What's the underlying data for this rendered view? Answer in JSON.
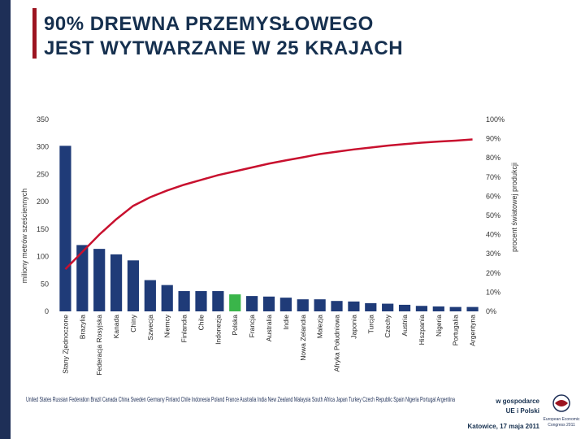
{
  "slide": {
    "title_line1": "90% DREWNA PRZEMYSŁOWEGO",
    "title_line2": "JEST WYTWARZANE W 25 KRAJACH",
    "footer_line1": "w gospodarce",
    "footer_line2": "UE i Polski",
    "footer_date": "Katowice, 17 maja 2011",
    "logo_text": "European Economic Congress 2011",
    "colors": {
      "sidebar": "#1e2f57",
      "accent": "#9c1420",
      "bar": "#1f3b78",
      "highlight": "#3ab54a",
      "line": "#c8102e"
    }
  },
  "chart_data": {
    "type": "bar",
    "categories": [
      "Stany Zjednoczone",
      "Brazylia",
      "Federacja Rosyjska",
      "Kanada",
      "Chiny",
      "Szwecja",
      "Niemcy",
      "Finlandia",
      "Chile",
      "Indonezja",
      "Polska",
      "Francja",
      "Australia",
      "Indie",
      "Nowa Zelandia",
      "Malezja",
      "Afryka Południowa",
      "Japonia",
      "Turcja",
      "Czechy",
      "Austria",
      "Hiszpania",
      "Nigeria",
      "Portugalia",
      "Argentyna"
    ],
    "series": [
      {
        "type": "bar",
        "axis": "left",
        "values": [
          302,
          121,
          114,
          104,
          93,
          57,
          48,
          37,
          37,
          37,
          31,
          28,
          27,
          25,
          22,
          22,
          19,
          18,
          15,
          14,
          12,
          10,
          9,
          8,
          8
        ]
      },
      {
        "type": "line",
        "axis": "right",
        "values": [
          22,
          31,
          40,
          48,
          55,
          59.5,
          63,
          66,
          68.5,
          71,
          73,
          75,
          77,
          78.7,
          80.3,
          82,
          83.2,
          84.4,
          85.4,
          86.4,
          87.2,
          87.9,
          88.5,
          89,
          89.6
        ]
      }
    ],
    "highlight_index": 10,
    "ylabel": "miliony metrów sześciennych",
    "y2label": "procent światowej produkcji",
    "ylim": [
      0,
      350
    ],
    "y_ticks": [
      0,
      50,
      100,
      150,
      200,
      250,
      300,
      350
    ],
    "y2lim": [
      0,
      100
    ],
    "y2_ticks": [
      "0%",
      "10%",
      "20%",
      "30%",
      "40%",
      "50%",
      "60%",
      "70%",
      "80%",
      "90%",
      "100%"
    ],
    "overlay_english_labels": "United States Russian Federation Brazil Canada China Sweden Germany Finland Chile Indonesia Poland France Australia India New Zealand Malaysia South Africa Japan Turkey Czech Republic Spain Nigeria Portugal Argentina"
  }
}
